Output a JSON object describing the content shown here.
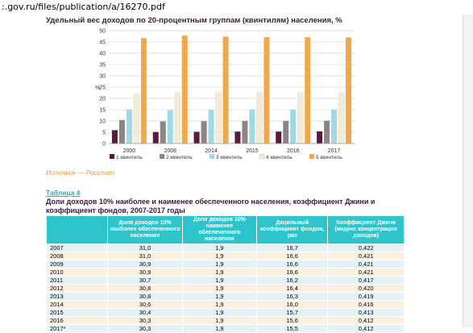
{
  "browser": {
    "url": ":.gov.ru/files/publication/a/16270.pdf"
  },
  "chart_data": {
    "type": "bar",
    "title": "Удельный вес доходов по 20-процентным группам (квинтилям) населения, %",
    "ylabel": "%",
    "ylim": [
      0,
      50
    ],
    "yticks": [
      0,
      5,
      10,
      15,
      20,
      25,
      30,
      35,
      40,
      45,
      50
    ],
    "categories": [
      "2000",
      "2008",
      "2014",
      "2015",
      "2016",
      "2017"
    ],
    "series": [
      {
        "name": "1 квинтиль",
        "color": "#5a1a3a",
        "values": [
          5.9,
          5.1,
          5.2,
          5.3,
          5.3,
          5.4
        ]
      },
      {
        "name": "2 квинтиль",
        "color": "#8e8485",
        "values": [
          10.4,
          9.8,
          9.9,
          10.0,
          10.0,
          10.1
        ]
      },
      {
        "name": "3 квинтиль",
        "color": "#9fd8e6",
        "values": [
          15.1,
          14.8,
          14.9,
          15.0,
          15.0,
          15.0
        ]
      },
      {
        "name": "4 квинтиль",
        "color": "#f3ead7",
        "values": [
          21.9,
          22.5,
          22.6,
          22.6,
          22.6,
          22.5
        ]
      },
      {
        "name": "5 квинтиль",
        "color": "#f0a94a",
        "values": [
          46.7,
          47.8,
          47.4,
          47.1,
          47.1,
          47.0
        ]
      }
    ],
    "legend": "bottom"
  },
  "source_text": "Источник — Росстат",
  "table": {
    "caption": "Таблица 4",
    "title": "Доли доходов 10% наиболее и наименее обеспеченного населения, коэффициент Джини и коэффициент фондов, 2007-2017 годы",
    "headers": [
      "",
      "Доля доходов 10% наиболее обеспеченного населения",
      "Доля доходов 10% наименее обеспеченного населения",
      "Децильный коэффициент фондов, раз",
      "Коэффициент Джини (индекс концентрации доходов)"
    ],
    "rows": [
      [
        "2007",
        "31,0",
        "1,9",
        "16,7",
        "0,422"
      ],
      [
        "2008",
        "31,0",
        "1,9",
        "16,6",
        "0,421"
      ],
      [
        "2009",
        "30,9",
        "1,9",
        "16,6",
        "0,421"
      ],
      [
        "2010",
        "30,9",
        "1,9",
        "16,6",
        "0,421"
      ],
      [
        "2011",
        "30,7",
        "1,9",
        "16,2",
        "0,417"
      ],
      [
        "2012",
        "30,8",
        "1,9",
        "16,4",
        "0,420"
      ],
      [
        "2013",
        "30,8",
        "1,9",
        "16,3",
        "0,419"
      ],
      [
        "2014",
        "30,6",
        "1,9",
        "16,0",
        "0,416"
      ],
      [
        "2015",
        "30,4",
        "1,9",
        "15,7",
        "0,413"
      ],
      [
        "2016",
        "30,3",
        "1,9",
        "15,6",
        "0,412"
      ],
      [
        "2017*",
        "30,3",
        "1,9",
        "15,5",
        "0,412"
      ]
    ]
  }
}
